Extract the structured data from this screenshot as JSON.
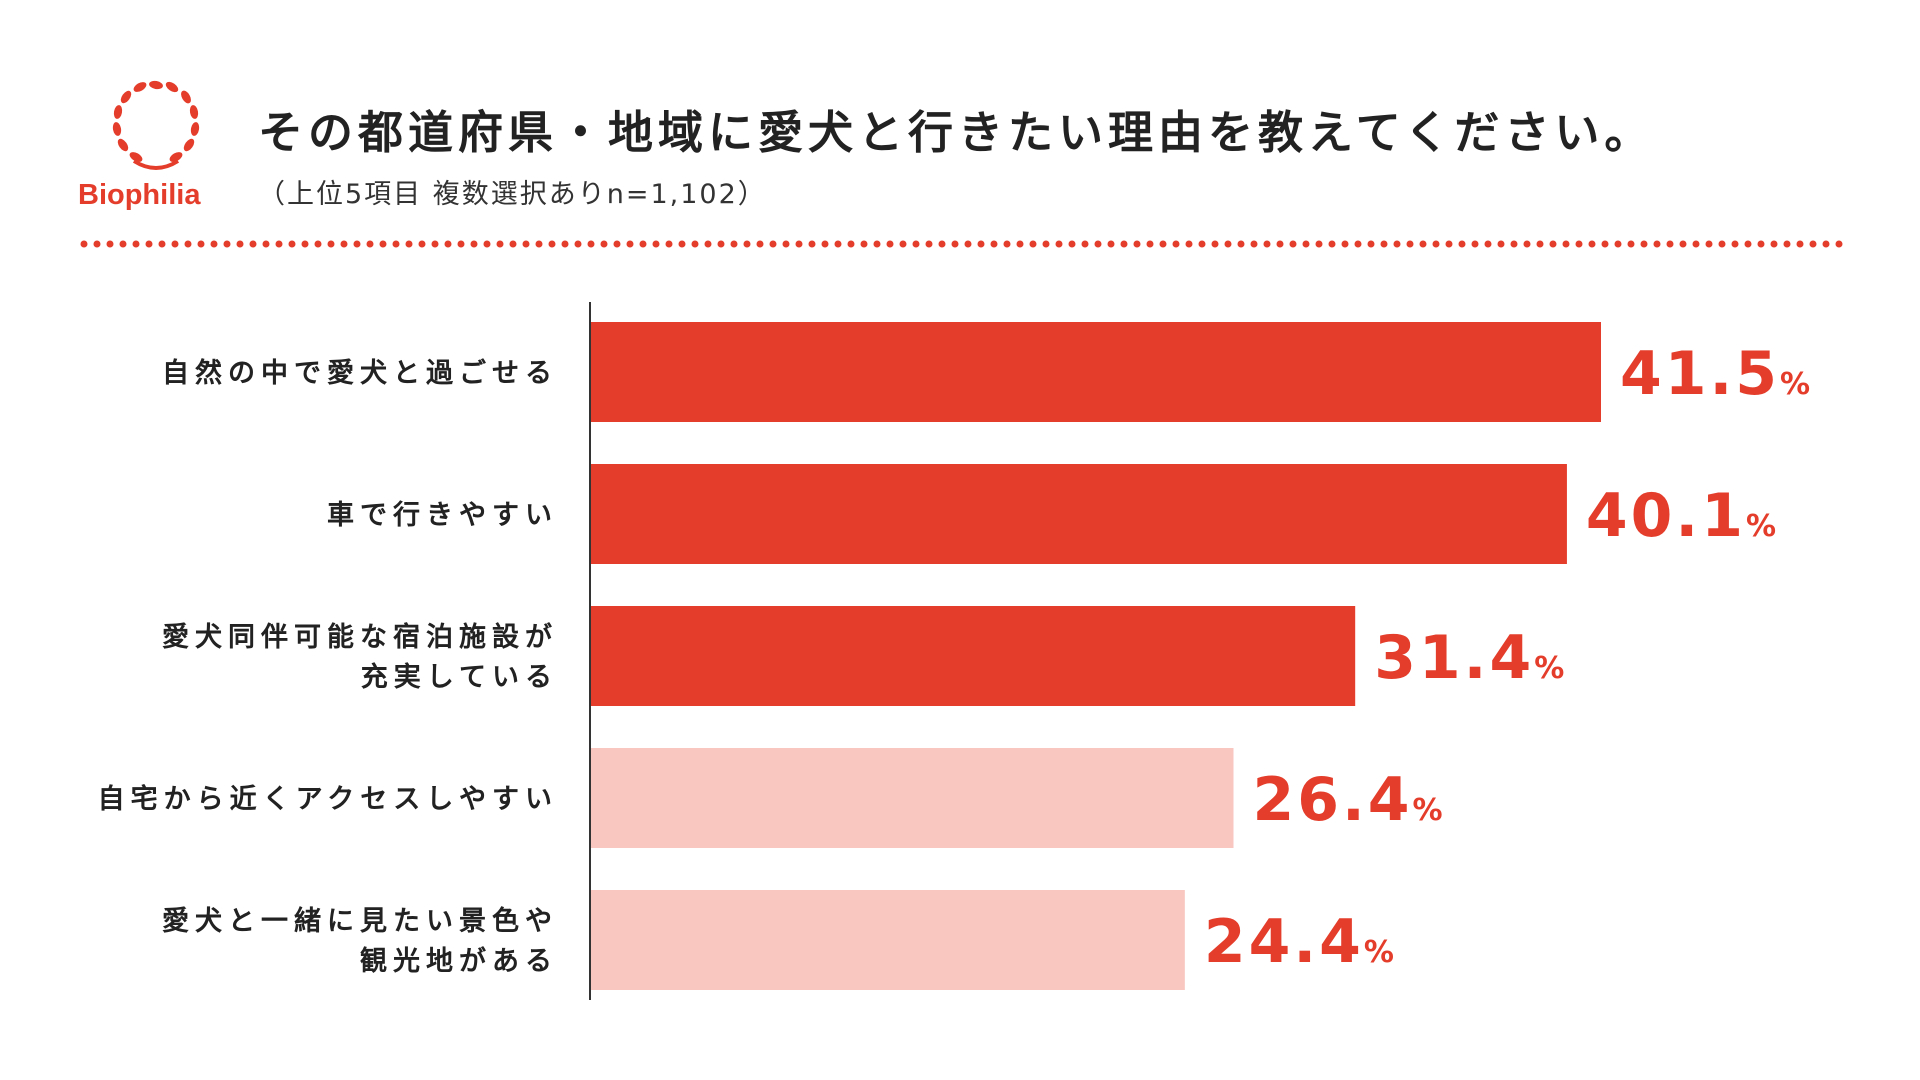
{
  "header": {
    "logo_text": "Biophilia",
    "title": "その都道府県・地域に愛犬と行きたい理由を教えてください。",
    "subtitle": "（上位5項目 複数選択ありn=1,102）"
  },
  "colors": {
    "accent": "#e43d2b",
    "highlight_bar": "#e43d2b",
    "muted_bar": "#f9c6c0",
    "text": "#222222"
  },
  "chart_data": {
    "type": "bar",
    "orientation": "horizontal",
    "title": "その都道府県・地域に愛犬と行きたい理由を教えてください。",
    "categories": [
      [
        "自然の中で愛犬と過ごせる"
      ],
      [
        "車で行きやすい"
      ],
      [
        "愛犬同伴可能な宿泊施設が",
        "充実している"
      ],
      [
        "自宅から近くアクセスしやすい"
      ],
      [
        "愛犬と一緒に見たい景色や",
        "観光地がある"
      ]
    ],
    "values": [
      41.5,
      40.1,
      31.4,
      26.4,
      24.4
    ],
    "value_labels": [
      "41.5",
      "40.1",
      "31.4",
      "26.4",
      "24.4"
    ],
    "unit": "%",
    "highlighted": [
      true,
      true,
      true,
      false,
      false
    ],
    "xlim": [
      0,
      45
    ],
    "grid": false,
    "legend": "none"
  }
}
